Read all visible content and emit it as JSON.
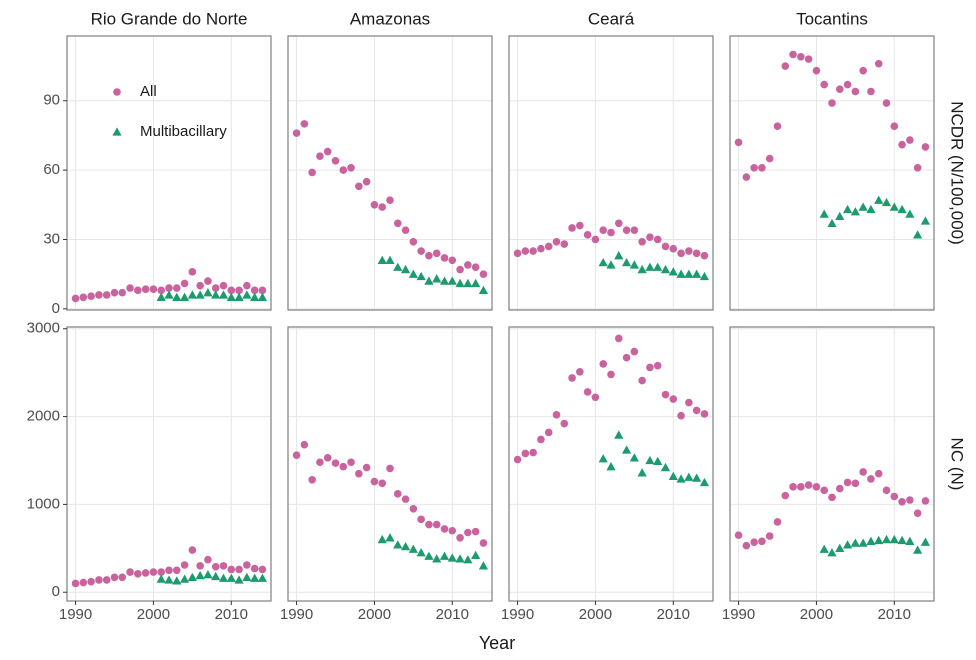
{
  "chart_data": {
    "type": "scatter",
    "columns": [
      "Rio Grande do Norte",
      "Amazonas",
      "Ceará",
      "Tocantins"
    ],
    "x_label": "Year",
    "x": [
      1990,
      1991,
      1992,
      1993,
      1994,
      1995,
      1996,
      1997,
      1998,
      1999,
      2000,
      2001,
      2002,
      2003,
      2004,
      2005,
      2006,
      2007,
      2008,
      2009,
      2010,
      2011,
      2012,
      2013,
      2014
    ],
    "xlim": [
      1988.9,
      2015.1
    ],
    "xticks": [
      1990,
      2000,
      2010
    ],
    "series": [
      {
        "name": "All",
        "color": "#c9629d",
        "marker": "circle"
      },
      {
        "name": "Multibacillary",
        "color": "#1b9b6e",
        "marker": "triangle"
      }
    ],
    "legend": "top-left",
    "grid": true,
    "rows": [
      {
        "label": "NCDR (N/100,000)",
        "ylim": [
          -0.5,
          118
        ],
        "yticks": [
          0,
          30,
          60,
          90
        ],
        "panels": [
          {
            "values": [
              [
                4.5,
                5,
                5.5,
                6,
                6,
                7,
                7,
                9,
                8,
                8.5,
                8.5,
                8,
                9,
                9,
                11,
                16,
                10,
                12,
                9,
                10,
                8,
                8,
                10,
                8,
                8
              ],
              [
                null,
                null,
                null,
                null,
                null,
                null,
                null,
                null,
                null,
                null,
                null,
                5,
                6,
                5,
                5,
                6,
                6,
                7,
                6,
                6,
                5,
                5,
                6,
                5,
                5
              ]
            ]
          },
          {
            "values": [
              [
                76,
                80,
                59,
                66,
                68,
                64,
                60,
                61,
                53,
                55,
                45,
                44,
                47,
                37,
                34,
                29,
                25,
                23,
                24,
                22,
                21,
                17,
                19,
                18,
                15
              ],
              [
                null,
                null,
                null,
                null,
                null,
                null,
                null,
                null,
                null,
                null,
                null,
                21,
                21,
                18,
                17,
                15,
                14,
                12,
                13,
                12,
                12,
                11,
                11,
                11,
                8
              ]
            ]
          },
          {
            "values": [
              [
                24,
                25,
                25,
                26,
                27,
                29,
                28,
                35,
                36,
                32,
                30,
                34,
                33,
                37,
                34,
                34,
                29,
                31,
                30,
                27,
                26,
                24,
                25,
                24,
                23
              ],
              [
                null,
                null,
                null,
                null,
                null,
                null,
                null,
                null,
                null,
                null,
                null,
                20,
                19,
                23,
                20,
                19,
                17,
                18,
                18,
                17,
                16,
                15,
                15,
                15,
                14
              ]
            ]
          },
          {
            "values": [
              [
                72,
                57,
                61,
                61,
                65,
                79,
                105,
                110,
                109,
                108,
                103,
                97,
                89,
                95,
                97,
                94,
                103,
                94,
                106,
                89,
                79,
                71,
                73,
                61,
                70
              ],
              [
                null,
                null,
                null,
                null,
                null,
                null,
                null,
                null,
                null,
                null,
                null,
                41,
                37,
                40,
                43,
                42,
                44,
                43,
                47,
                46,
                44,
                43,
                41,
                32,
                38
              ]
            ]
          }
        ]
      },
      {
        "label": "NC (N)",
        "ylim": [
          -100,
          3020
        ],
        "yticks": [
          0,
          1000,
          2000,
          3000
        ],
        "panels": [
          {
            "values": [
              [
                100,
                110,
                120,
                140,
                140,
                170,
                170,
                230,
                210,
                220,
                230,
                230,
                250,
                250,
                310,
                480,
                300,
                370,
                290,
                300,
                260,
                260,
                310,
                270,
                260
              ],
              [
                null,
                null,
                null,
                null,
                null,
                null,
                null,
                null,
                null,
                null,
                null,
                150,
                140,
                130,
                150,
                170,
                190,
                200,
                180,
                160,
                160,
                140,
                170,
                160,
                160
              ]
            ]
          },
          {
            "values": [
              [
                1560,
                1680,
                1280,
                1480,
                1530,
                1470,
                1430,
                1480,
                1350,
                1420,
                1260,
                1240,
                1410,
                1120,
                1060,
                950,
                830,
                770,
                770,
                720,
                700,
                620,
                680,
                690,
                560
              ],
              [
                null,
                null,
                null,
                null,
                null,
                null,
                null,
                null,
                null,
                null,
                null,
                600,
                620,
                540,
                520,
                490,
                450,
                410,
                380,
                410,
                390,
                380,
                370,
                420,
                300
              ]
            ]
          },
          {
            "values": [
              [
                1510,
                1580,
                1590,
                1740,
                1820,
                2020,
                1920,
                2440,
                2510,
                2280,
                2220,
                2600,
                2480,
                2890,
                2670,
                2740,
                2410,
                2560,
                2580,
                2250,
                2200,
                2010,
                2160,
                2070,
                2030
              ],
              [
                null,
                null,
                null,
                null,
                null,
                null,
                null,
                null,
                null,
                null,
                null,
                1520,
                1430,
                1790,
                1620,
                1530,
                1360,
                1500,
                1490,
                1420,
                1320,
                1290,
                1310,
                1300,
                1250
              ]
            ]
          },
          {
            "values": [
              [
                650,
                530,
                570,
                580,
                640,
                800,
                1100,
                1200,
                1200,
                1220,
                1200,
                1160,
                1080,
                1180,
                1250,
                1240,
                1370,
                1290,
                1350,
                1160,
                1090,
                1030,
                1050,
                900,
                1040
              ],
              [
                null,
                null,
                null,
                null,
                null,
                null,
                null,
                null,
                null,
                null,
                null,
                490,
                450,
                500,
                540,
                560,
                560,
                580,
                590,
                600,
                600,
                590,
                580,
                480,
                570
              ]
            ]
          }
        ]
      }
    ]
  }
}
